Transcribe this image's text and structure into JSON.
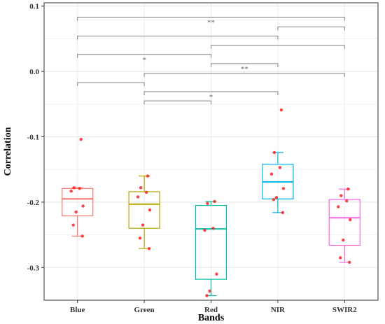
{
  "chart_data": {
    "type": "boxplot",
    "xlabel": "Bands",
    "ylabel": "Correlation",
    "ylim": [
      -0.35,
      0.105
    ],
    "yticks": [
      0.1,
      0.0,
      -0.1,
      -0.2,
      -0.3
    ],
    "ytick_labels": [
      "0.1",
      "0.0",
      "-0.1",
      "-0.2",
      "-0.3"
    ],
    "grid": true,
    "categories": [
      "Blue",
      "Green",
      "Red",
      "NIR",
      "SWIR2"
    ],
    "colors": [
      "#f8766d",
      "#b5a500",
      "#00bfa4",
      "#00b4ef",
      "#f564e3"
    ],
    "point_color": "#ff2020",
    "boxes": [
      {
        "name": "Blue",
        "whisker_low": -0.252,
        "q1": -0.221,
        "median": -0.195,
        "q3": -0.179,
        "whisker_high": -0.178,
        "points": [
          -0.104,
          -0.178,
          -0.179,
          -0.183,
          -0.206,
          -0.215,
          -0.235,
          -0.252
        ]
      },
      {
        "name": "Green",
        "whisker_low": -0.271,
        "q1": -0.24,
        "median": -0.203,
        "q3": -0.184,
        "whisker_high": -0.16,
        "points": [
          -0.16,
          -0.178,
          -0.185,
          -0.192,
          -0.212,
          -0.235,
          -0.255,
          -0.271
        ]
      },
      {
        "name": "Red",
        "whisker_low": -0.343,
        "q1": -0.318,
        "median": -0.241,
        "q3": -0.205,
        "whisker_high": -0.199,
        "points": [
          -0.199,
          -0.202,
          -0.24,
          -0.243,
          -0.31,
          -0.336,
          -0.343
        ]
      },
      {
        "name": "NIR",
        "whisker_low": -0.216,
        "q1": -0.195,
        "median": -0.169,
        "q3": -0.142,
        "whisker_high": -0.124,
        "points": [
          -0.059,
          -0.124,
          -0.147,
          -0.157,
          -0.179,
          -0.193,
          -0.196,
          -0.216
        ]
      },
      {
        "name": "SWIR2",
        "whisker_low": -0.292,
        "q1": -0.266,
        "median": -0.224,
        "q3": -0.196,
        "whisker_high": -0.18,
        "points": [
          -0.18,
          -0.19,
          -0.198,
          -0.207,
          -0.227,
          -0.258,
          -0.285,
          -0.292
        ]
      }
    ],
    "significance": [
      {
        "from": "Blue",
        "to": "SWIR2",
        "y": 0.083,
        "label": "**"
      },
      {
        "from": "NIR",
        "to": "SWIR2",
        "y": 0.068,
        "label": ""
      },
      {
        "from": "Blue",
        "to": "NIR",
        "y": 0.054,
        "label": ""
      },
      {
        "from": "Red",
        "to": "SWIR2",
        "y": 0.04,
        "label": ""
      },
      {
        "from": "Blue",
        "to": "Red",
        "y": 0.026,
        "label": "*"
      },
      {
        "from": "Red",
        "to": "NIR",
        "y": 0.012,
        "label": "**"
      },
      {
        "from": "Green",
        "to": "SWIR2",
        "y": -0.003,
        "label": ""
      },
      {
        "from": "Blue",
        "to": "Green",
        "y": -0.017,
        "label": ""
      },
      {
        "from": "Green",
        "to": "NIR",
        "y": -0.031,
        "label": "*"
      },
      {
        "from": "Green",
        "to": "Red",
        "y": -0.045,
        "label": ""
      }
    ]
  }
}
